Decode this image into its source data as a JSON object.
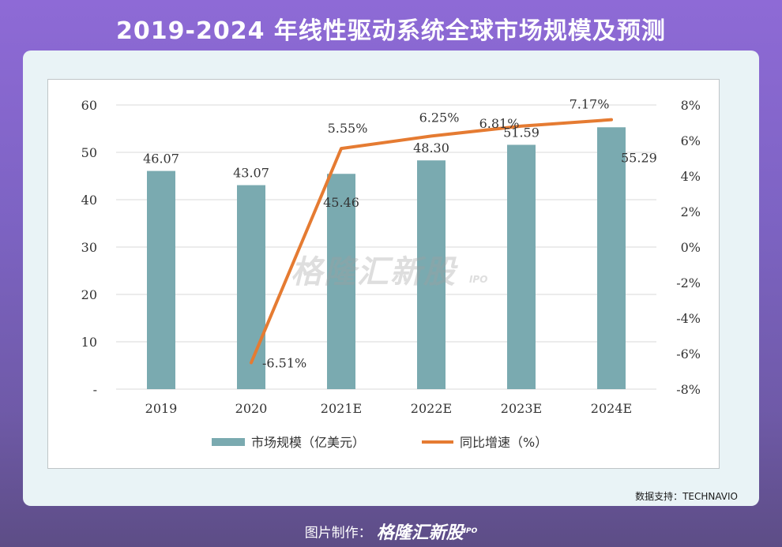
{
  "title": "2019-2024 年线性驱动系统全球市场规模及预测",
  "source": "数据支持：TECHNAVIO",
  "footer": {
    "label": "图片制作：",
    "logo": "格隆汇新股",
    "logo_sub": "IPO"
  },
  "watermark": {
    "text": "格隆汇新股",
    "sub": "IPO"
  },
  "colors": {
    "bar": "#7aaab0",
    "line": "#e57b32",
    "text": "#333333",
    "grid": "#d9d9d9"
  },
  "chart_data": {
    "type": "bar+line",
    "categories": [
      "2019",
      "2020",
      "2021E",
      "2022E",
      "2023E",
      "2024E"
    ],
    "series": [
      {
        "name": "市场规模（亿美元）",
        "type": "bar",
        "axis": "left",
        "values": [
          46.07,
          43.07,
          45.46,
          48.3,
          51.59,
          55.29
        ],
        "labels": [
          "46.07",
          "43.07",
          "45.46",
          "48.30",
          "51.59",
          "55.29"
        ]
      },
      {
        "name": "同比增速（%）",
        "type": "line",
        "axis": "right",
        "values": [
          null,
          -6.51,
          5.55,
          6.25,
          6.81,
          7.17
        ],
        "labels": [
          "",
          "-6.51%",
          "5.55%",
          "6.25%",
          "6.81%",
          "7.17%"
        ]
      }
    ],
    "y_left": {
      "ticks": [
        "-",
        "10",
        "20",
        "30",
        "40",
        "50",
        "60"
      ],
      "min": 0,
      "max": 60
    },
    "y_right": {
      "ticks": [
        "-8%",
        "-6%",
        "-4%",
        "-2%",
        "0%",
        "2%",
        "4%",
        "6%",
        "8%"
      ],
      "min": -8,
      "max": 8
    },
    "grid": true,
    "legend_position": "bottom"
  }
}
